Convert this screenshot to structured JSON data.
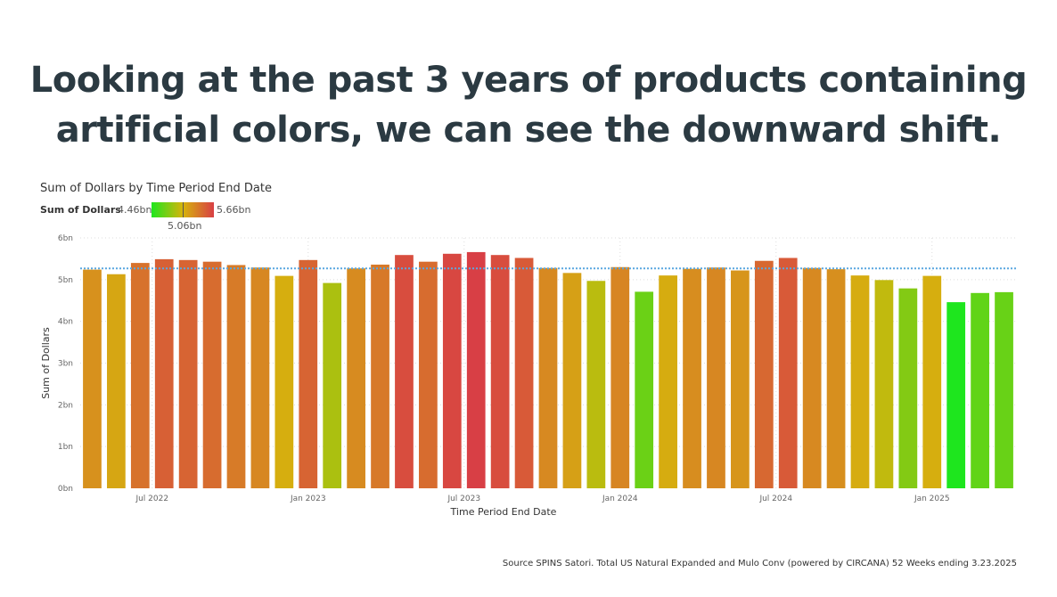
{
  "headline": {
    "line1": "Looking at the past 3 years of products containing",
    "line2": "artificial colors, we can see the downward shift."
  },
  "source_note": "Source SPINS Satori. Total US Natural Expanded and Mulo Conv (powered by CIRCANA) 52 Weeks ending 3.23.2025",
  "colors": {
    "low": "#1ee61e",
    "mid": "#d6b40c",
    "high": "#d83f45",
    "average_line": "#5aa7e0"
  },
  "chart_data": {
    "type": "bar",
    "title": "Sum of Dollars by Time Period End Date",
    "xlabel": "Time Period End Date",
    "ylabel": "Sum of Dollars",
    "ylim": [
      0,
      6
    ],
    "yticks": [
      "0bn",
      "1bn",
      "2bn",
      "3bn",
      "4bn",
      "5bn",
      "6bn"
    ],
    "xticks": [
      {
        "label": "Jul 2022",
        "index": 2.5
      },
      {
        "label": "Jan 2023",
        "index": 9
      },
      {
        "label": "Jul 2023",
        "index": 15.5
      },
      {
        "label": "Jan 2024",
        "index": 22
      },
      {
        "label": "Jul 2024",
        "index": 28.5
      },
      {
        "label": "Jan 2025",
        "index": 35
      }
    ],
    "legend": {
      "title": "Sum of Dollars",
      "min_label": "4.46bn",
      "mid_label": "5.06bn",
      "max_label": "5.66bn",
      "min": 4.46,
      "mid": 5.06,
      "max": 5.66
    },
    "average_line": 5.27,
    "grid": true,
    "values": [
      5.24,
      5.13,
      5.4,
      5.49,
      5.47,
      5.43,
      5.35,
      5.29,
      5.09,
      5.47,
      4.92,
      5.27,
      5.36,
      5.59,
      5.43,
      5.62,
      5.66,
      5.59,
      5.52,
      5.28,
      5.16,
      4.97,
      5.3,
      4.71,
      5.1,
      5.26,
      5.29,
      5.22,
      5.45,
      5.52,
      5.28,
      5.25,
      5.1,
      4.99,
      4.79,
      5.09,
      4.46,
      4.68,
      4.7
    ]
  }
}
